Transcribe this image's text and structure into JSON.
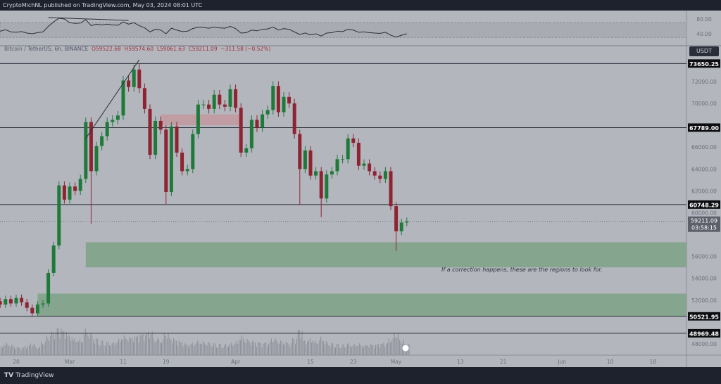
{
  "header": {
    "published": "CryptoMichNL published on TradingView.com, May 03, 2024 08:01 UTC"
  },
  "legend": {
    "symbol": "Bitcoin / TetherUS, 6h, BINANCE",
    "open": "O59522.68",
    "high": "H59574.60",
    "low": "L59061.63",
    "close": "C59211.09",
    "change": "−311.58 (−0.52%)"
  },
  "currency_button": "USDT",
  "annotation": "If a correction happens, these are the regions to look for.",
  "footer": {
    "logo": "TV",
    "brand": "TradingView"
  },
  "chart_data": {
    "type": "candlestick",
    "start_date": "2024-02-14",
    "interval": "1d",
    "closes": [
      51600,
      51900,
      51900,
      51600,
      52100,
      51700,
      52200,
      51800,
      51300,
      50800,
      51600,
      51700,
      54500,
      57000,
      62500,
      61200,
      62400,
      62000,
      63100,
      68300,
      63800,
      66100,
      67000,
      68300,
      68500,
      68900,
      72100,
      71500,
      73100,
      71400,
      69500,
      65300,
      68400,
      67600,
      61900,
      67900,
      65500,
      63800,
      64000,
      67200,
      69900,
      69900,
      69500,
      70800,
      69900,
      69700,
      71300,
      69600,
      65500,
      65900,
      68500,
      67800,
      69000,
      69400,
      71600,
      69200,
      70600,
      70000,
      67200,
      64000,
      65700,
      63400,
      63800,
      61300,
      63500,
      63800,
      64900,
      64900,
      66800,
      66400,
      64300,
      64500,
      63800,
      63400,
      63100,
      63800,
      60600,
      58300,
      59100,
      59211
    ],
    "low_wicks": {
      "2024-03-05": 59000,
      "2024-03-19": 60800,
      "2024-04-13": 60700,
      "2024-04-17": 59600,
      "2024-05-01": 56500
    },
    "high_wicks": {
      "2024-03-14": 73650
    },
    "ylim": [
      47500,
      75000
    ],
    "y_ticks": [
      "72000.00",
      "70000.00",
      "66000.00",
      "64000.00",
      "62000.00",
      "60000.00",
      "56000.00",
      "54000.00",
      "52000.00",
      "48000.00"
    ],
    "x_ticks": [
      {
        "date": "2024-02-20",
        "label": "20"
      },
      {
        "date": "2024-03-01",
        "label": "Mar"
      },
      {
        "date": "2024-03-11",
        "label": "11"
      },
      {
        "date": "2024-03-19",
        "label": "19"
      },
      {
        "date": "2024-04-01",
        "label": "Apr"
      },
      {
        "date": "2024-04-15",
        "label": "15"
      },
      {
        "date": "2024-04-23",
        "label": "23"
      },
      {
        "date": "2024-05-01",
        "label": "May"
      },
      {
        "date": "2024-05-13",
        "label": "13"
      },
      {
        "date": "2024-05-21",
        "label": "21"
      },
      {
        "date": "2024-06-01",
        "label": "Jun"
      },
      {
        "date": "2024-06-10",
        "label": "10"
      },
      {
        "date": "2024-06-18",
        "label": "18"
      }
    ],
    "levels": [
      {
        "price": 73650.25,
        "label": "73650.25"
      },
      {
        "price": 67789.0,
        "label": "67789.00"
      },
      {
        "price": 60748.29,
        "label": "60748.29"
      },
      {
        "price": 50521.95,
        "label": "50521.95"
      },
      {
        "price": 48969.48,
        "label": "48969.48"
      }
    ],
    "last_price": {
      "price": 59211.09,
      "label": "59211.09",
      "countdown": "03:58:15"
    },
    "zones": [
      {
        "kind": "support",
        "from_date": "2024-03-04",
        "top": 57300,
        "bottom": 55000,
        "color": "#7fa389"
      },
      {
        "kind": "support",
        "from_date": "2024-02-24",
        "top": 52600,
        "bottom": 50521.95,
        "color": "#7fa389"
      },
      {
        "kind": "resistance",
        "from_date": "2024-03-18",
        "to_date": "2024-04-02",
        "top": 69000,
        "bottom": 68000,
        "color": "#c4949a"
      }
    ],
    "trendline": {
      "from": [
        "2024-03-04",
        66800
      ],
      "to": [
        "2024-03-14",
        74000
      ]
    },
    "colors": {
      "up": "#1f7a3a",
      "down": "#8e2331",
      "level": "#2a2e39",
      "background": "#b4b6be"
    },
    "rsi": {
      "y_ticks": [
        "80.00",
        "40.00"
      ],
      "band": [
        70,
        30
      ],
      "values": [
        52,
        55,
        50,
        47,
        51,
        45,
        44,
        46,
        42,
        40,
        43,
        45,
        60,
        72,
        82,
        80,
        70,
        68,
        69,
        78,
        62,
        66,
        64,
        66,
        64,
        63,
        72,
        66,
        70,
        62,
        56,
        45,
        52,
        50,
        40,
        55,
        50,
        46,
        47,
        54,
        58,
        57,
        55,
        58,
        56,
        55,
        60,
        54,
        42,
        43,
        50,
        48,
        52,
        53,
        58,
        50,
        54,
        52,
        45,
        38,
        42,
        37,
        40,
        34,
        42,
        43,
        47,
        46,
        52,
        50,
        44,
        45,
        43,
        42,
        41,
        44,
        36,
        31,
        36,
        40
      ]
    },
    "volume": [
      40,
      35,
      30,
      32,
      45,
      38,
      30,
      28,
      35,
      42,
      30,
      48,
      70,
      85,
      100,
      90,
      72,
      60,
      58,
      95,
      80,
      62,
      55,
      50,
      48,
      58,
      70,
      66,
      68,
      75,
      78,
      85,
      60,
      55,
      80,
      62,
      55,
      48,
      40,
      45,
      52,
      50,
      48,
      44,
      42,
      40,
      45,
      50,
      70,
      58,
      52,
      48,
      44,
      46,
      60,
      52,
      48,
      44,
      62,
      95,
      55,
      60,
      52,
      66,
      50,
      45,
      42,
      40,
      44,
      40,
      42,
      38,
      40,
      38,
      42,
      45,
      60,
      80,
      55,
      40
    ]
  }
}
